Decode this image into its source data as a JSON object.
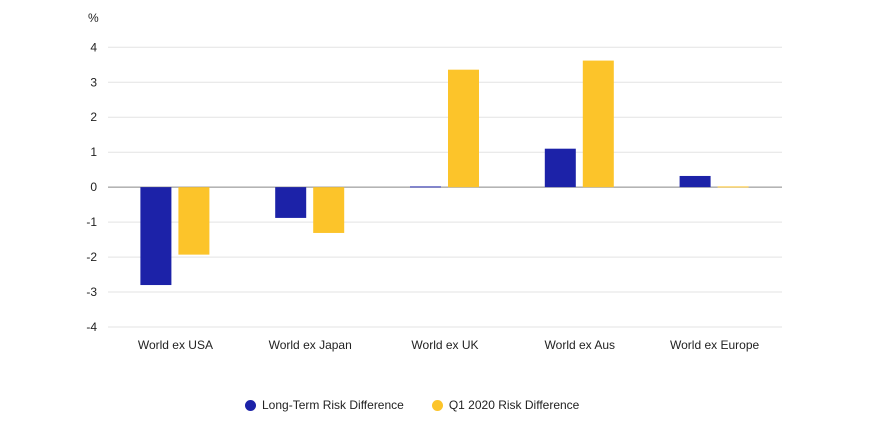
{
  "chart_data": {
    "type": "bar",
    "title": "",
    "ylabel": "%",
    "xlabel": "",
    "ylim": [
      -4,
      4
    ],
    "yticks": [
      4,
      3,
      2,
      1,
      0,
      -1,
      -2,
      -3,
      -4
    ],
    "grid": true,
    "legend_position": "bottom",
    "categories": [
      "World ex USA",
      "World ex Japan",
      "World ex UK",
      "World ex Aus",
      "World ex Europe"
    ],
    "series": [
      {
        "name": "Long-Term Risk Difference",
        "color": "#1c22a8",
        "values": [
          -2.8,
          -0.88,
          0.02,
          1.1,
          0.32
        ]
      },
      {
        "name": "Q1 2020 Risk Difference",
        "color": "#fcc42a",
        "values": [
          -1.93,
          -1.31,
          3.36,
          3.62,
          0.02
        ]
      }
    ]
  }
}
